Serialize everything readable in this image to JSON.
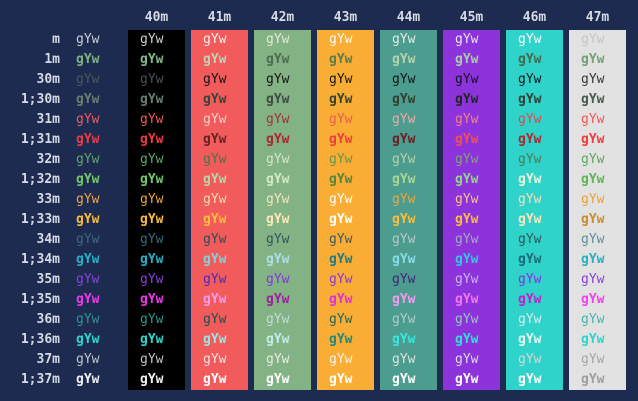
{
  "terminal": {
    "background": "#1d2b50",
    "header_color": "#d6dae2",
    "label_color": "#d6dae2",
    "cell_text": "gYw",
    "columns": [
      {
        "label": "40m",
        "bg": "#000000"
      },
      {
        "label": "41m",
        "bg": "#f25b5b"
      },
      {
        "label": "42m",
        "bg": "#83b284"
      },
      {
        "label": "43m",
        "bg": "#f9ad34"
      },
      {
        "label": "44m",
        "bg": "#4c9c8f"
      },
      {
        "label": "45m",
        "bg": "#8c33db"
      },
      {
        "label": "46m",
        "bg": "#2fd3ca"
      },
      {
        "label": "47m",
        "bg": "#e2e2e2"
      }
    ],
    "rows": [
      {
        "label": "m",
        "bold": false,
        "cells": [
          "#cdd0d5",
          "#cdd0d5",
          "#f6efec",
          "#e2ead9",
          "#fdf8f1",
          "#e6ebe9",
          "#e9e4f1",
          "#fbfffe",
          "#c2c4c6"
        ]
      },
      {
        "label": "1m",
        "bold": true,
        "cells": [
          "#7fb383",
          "#85ba8a",
          "#bdd3b3",
          "#4d6b50",
          "#567c52",
          "#b7d2ae",
          "#a8cda3",
          "#48684b",
          "#72a175"
        ]
      },
      {
        "label": "30m",
        "bold": false,
        "cells": [
          "#4e555c",
          "#4a5157",
          "#181414",
          "#131513",
          "#16130f",
          "#0f1413",
          "#171120",
          "#0e1517",
          "#31373c"
        ]
      },
      {
        "label": "1;30m",
        "bold": true,
        "cells": [
          "#6b7f72",
          "#6b7f72",
          "#35453a",
          "#3e4c41",
          "#35432f",
          "#32412f",
          "#20291f",
          "#2f4034",
          "#475a4e"
        ]
      },
      {
        "label": "31m",
        "bold": false,
        "cells": [
          "#f2595c",
          "#f2595c",
          "#f8ccc7",
          "#a03336",
          "#eb5a50",
          "#f0a9a6",
          "#f2837f",
          "#d94a4d",
          "#f1564f"
        ]
      },
      {
        "label": "1;31m",
        "bold": true,
        "cells": [
          "#ef3a43",
          "#ef3a43",
          "#632428",
          "#a8262c",
          "#ef3b41",
          "#6b2025",
          "#f2524a",
          "#b3242e",
          "#f03c38"
        ]
      },
      {
        "label": "32m",
        "bold": false,
        "cells": [
          "#63a56b",
          "#63a56b",
          "#507148",
          "#d5e5cc",
          "#64944f",
          "#b8d2ab",
          "#7ba671",
          "#4f7a52",
          "#61a45e"
        ]
      },
      {
        "label": "1;32m",
        "bold": true,
        "cells": [
          "#76c967",
          "#76c967",
          "#b2d8a4",
          "#d2ecc4",
          "#558340",
          "#a9d798",
          "#90da80",
          "#e9f6da",
          "#5cb552"
        ]
      },
      {
        "label": "33m",
        "bold": false,
        "cells": [
          "#f2a63c",
          "#f2a63c",
          "#f6d9a8",
          "#f7e5bb",
          "#fdfbf3",
          "#f2a63c",
          "#f6c683",
          "#f4e0b9",
          "#ec9f35"
        ]
      },
      {
        "label": "1;33m",
        "bold": true,
        "cells": [
          "#fbbd3a",
          "#fbbd3a",
          "#fbbd3a",
          "#fce9b8",
          "#fffef8",
          "#fbbd3a",
          "#fbbd3a",
          "#f8e6ba",
          "#c98d2e"
        ]
      },
      {
        "label": "34m",
        "bold": false,
        "cells": [
          "#3d6a7d",
          "#3d6a7d",
          "#314c55",
          "#33545e",
          "#3a5a64",
          "#bcc8c9",
          "#a4abc0",
          "#33545c",
          "#5f8d99"
        ]
      },
      {
        "label": "1;34m",
        "bold": true,
        "cells": [
          "#27b3c6",
          "#27b3c6",
          "#7ed3da",
          "#abe0e8",
          "#1f7a88",
          "#86dde4",
          "#2fc9de",
          "#1d6a77",
          "#29b0c0"
        ]
      },
      {
        "label": "35m",
        "bold": false,
        "cells": [
          "#8b41dc",
          "#8b41dc",
          "#4b2bb5",
          "#8136e0",
          "#8a35e2",
          "#412376",
          "#c9b4ea",
          "#8a2ee0",
          "#8a3fd9"
        ]
      },
      {
        "label": "1;35m",
        "bold": true,
        "cells": [
          "#f037ee",
          "#f037ee",
          "#f09bf2",
          "#9c1f9e",
          "#dd2ee4",
          "#f49aef",
          "#f477ee",
          "#c21fc9",
          "#f53ff0"
        ]
      },
      {
        "label": "36m",
        "bold": false,
        "cells": [
          "#31968e",
          "#31968e",
          "#20514d",
          "#c3ddd6",
          "#20655c",
          "#abd0c9",
          "#93c9bf",
          "#d8eeea",
          "#45b5ac"
        ]
      },
      {
        "label": "1;36m",
        "bold": true,
        "cells": [
          "#2cd8d0",
          "#2cd8d0",
          "#93e8e3",
          "#bfeeea",
          "#1d8a80",
          "#38e8de",
          "#2fe2d8",
          "#e4f9f5",
          "#2fd5cc"
        ]
      },
      {
        "label": "37m",
        "bold": false,
        "cells": [
          "#c1c5c9",
          "#c1c5c9",
          "#e8e3de",
          "#e9ebe6",
          "#f5f1e8",
          "#dfe3e1",
          "#dcdbe4",
          "#d2d8d6",
          "#a5a5a5"
        ]
      },
      {
        "label": "1;37m",
        "bold": true,
        "cells": [
          "#f0f2f4",
          "#f0f2f4",
          "#ffffff",
          "#ffffff",
          "#ffffff",
          "#ffffff",
          "#ffffff",
          "#ffffff",
          "#9e9e9e"
        ]
      }
    ]
  }
}
